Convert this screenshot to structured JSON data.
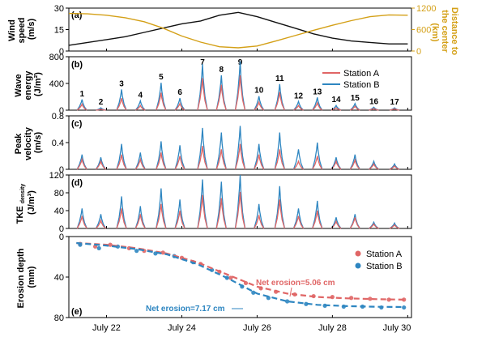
{
  "figure": {
    "shared_x_ticks": [
      "July 22",
      "July 24",
      "July 26",
      "July 28",
      "July 30"
    ]
  },
  "colors": {
    "station_a": "#e06666",
    "station_b": "#2e86c1",
    "wind": "#111111",
    "distance": "#d4a017"
  },
  "chart_data": [
    {
      "type": "line",
      "panel_label": "(a)",
      "ylabel": "Wind speed (m/s)",
      "ylim": [
        0,
        30
      ],
      "yticks": [
        "0",
        "15",
        "30"
      ],
      "y2label": "Distance to the center (km)",
      "y2lim": [
        0,
        1200
      ],
      "y2ticks": [
        "0",
        "600",
        "1200"
      ],
      "x_days": [
        21,
        21.5,
        22,
        22.5,
        23,
        23.5,
        24,
        24.5,
        25,
        25.5,
        26,
        26.5,
        27,
        27.5,
        28,
        28.5,
        29,
        29.5,
        30
      ],
      "series": [
        {
          "key": "wind",
          "axis": "left",
          "values": [
            4,
            6,
            8,
            10,
            13,
            16,
            19,
            21,
            25,
            27,
            24,
            20,
            16,
            12,
            9,
            7,
            6,
            5,
            5
          ]
        },
        {
          "key": "distance",
          "axis": "right",
          "values": [
            1050,
            1040,
            1000,
            930,
            820,
            640,
            420,
            250,
            120,
            90,
            140,
            280,
            430,
            580,
            720,
            850,
            960,
            1010,
            1000
          ]
        }
      ]
    },
    {
      "type": "line",
      "panel_label": "(b)",
      "ylabel": "Wave energy (J/m²)",
      "ylim": [
        0,
        800
      ],
      "yticks": [
        "0",
        "400",
        "800"
      ],
      "legend": [
        "Station A",
        "Station B"
      ],
      "legend_position": "top-right",
      "tide_labels": [
        "1",
        "2",
        "3",
        "4",
        "5",
        "6",
        "7",
        "8",
        "9",
        "10",
        "11",
        "12",
        "13",
        "14",
        "15",
        "16",
        "17"
      ],
      "peak_days": [
        21.35,
        21.85,
        22.4,
        22.9,
        23.45,
        23.95,
        24.55,
        25.05,
        25.55,
        26.05,
        26.6,
        27.1,
        27.6,
        28.1,
        28.6,
        29.1,
        29.65
      ],
      "station_a_peaks": [
        90,
        15,
        180,
        70,
        260,
        100,
        480,
        380,
        520,
        120,
        270,
        70,
        110,
        35,
        60,
        25,
        20
      ],
      "station_b_peaks": [
        160,
        35,
        310,
        140,
        410,
        180,
        690,
        520,
        730,
        210,
        390,
        130,
        190,
        70,
        100,
        45,
        35
      ]
    },
    {
      "type": "line",
      "panel_label": "(c)",
      "ylabel": "Peak velocity (m/s)",
      "ylim": [
        0,
        0.8
      ],
      "yticks": [
        "0",
        "0.4",
        "0.8"
      ],
      "station_a_peaks": [
        0.15,
        0.12,
        0.22,
        0.15,
        0.25,
        0.2,
        0.35,
        0.3,
        0.38,
        0.22,
        0.3,
        0.12,
        0.2,
        0.12,
        0.14,
        0.08,
        0.05
      ],
      "station_b_peaks": [
        0.22,
        0.18,
        0.38,
        0.25,
        0.42,
        0.36,
        0.62,
        0.55,
        0.65,
        0.38,
        0.55,
        0.3,
        0.4,
        0.18,
        0.22,
        0.12,
        0.08
      ]
    },
    {
      "type": "line",
      "panel_label": "(d)",
      "ylabel": "TKE density (J/m³)",
      "ylim": [
        0,
        120
      ],
      "yticks": [
        "0",
        "40",
        "80",
        "120"
      ],
      "station_a_peaks": [
        28,
        18,
        45,
        32,
        55,
        40,
        75,
        68,
        82,
        30,
        65,
        28,
        40,
        16,
        25,
        10,
        8
      ],
      "station_b_peaks": [
        45,
        32,
        72,
        50,
        90,
        65,
        110,
        105,
        120,
        55,
        95,
        45,
        62,
        25,
        32,
        14,
        12
      ]
    },
    {
      "type": "scatter",
      "panel_label": "(e)",
      "ylabel": "Erosion depth (mm)",
      "ylim": [
        0,
        80
      ],
      "yticks": [
        "0",
        "40",
        "80"
      ],
      "legend": [
        "Station A",
        "Station B"
      ],
      "legend_position": "center-right",
      "fit_days": [
        21.2,
        22,
        22.8,
        23.6,
        24.4,
        25.2,
        26,
        26.8,
        27.6,
        28.4,
        29.2,
        29.9
      ],
      "station_a_fit": [
        0,
        2,
        6,
        12,
        22,
        36,
        50,
        58,
        62,
        63.5,
        64.5,
        65
      ],
      "station_b_fit": [
        0,
        3,
        7,
        13,
        24,
        40,
        58,
        67,
        71,
        72.5,
        73.2,
        73.5
      ],
      "station_a_points": [
        [
          21.3,
          1
        ],
        [
          21.7,
          4
        ],
        [
          22.1,
          2
        ],
        [
          22.6,
          6
        ],
        [
          23.0,
          9
        ],
        [
          23.5,
          11
        ],
        [
          24.0,
          17
        ],
        [
          24.5,
          24
        ],
        [
          25.0,
          33
        ],
        [
          25.3,
          40
        ],
        [
          25.7,
          46
        ],
        [
          26.1,
          52
        ],
        [
          26.5,
          56
        ],
        [
          27.0,
          59
        ],
        [
          27.5,
          61
        ],
        [
          28.0,
          62
        ],
        [
          28.5,
          63
        ],
        [
          29.0,
          64
        ],
        [
          29.5,
          65
        ],
        [
          29.9,
          65
        ]
      ],
      "station_b_points": [
        [
          21.3,
          2
        ],
        [
          21.8,
          6
        ],
        [
          22.3,
          4
        ],
        [
          22.8,
          9
        ],
        [
          23.3,
          12
        ],
        [
          23.8,
          15
        ],
        [
          24.3,
          22
        ],
        [
          24.8,
          31
        ],
        [
          25.2,
          40
        ],
        [
          25.6,
          50
        ],
        [
          25.9,
          57
        ],
        [
          26.3,
          63
        ],
        [
          26.8,
          67
        ],
        [
          27.3,
          70
        ],
        [
          27.8,
          72
        ],
        [
          28.3,
          73
        ],
        [
          28.8,
          73
        ],
        [
          29.3,
          74
        ],
        [
          29.9,
          74
        ]
      ],
      "annotations": [
        {
          "key": "a",
          "text": "Net erosion=5.06 cm"
        },
        {
          "key": "b",
          "text": "Net erosion=7.17 cm"
        }
      ]
    }
  ]
}
